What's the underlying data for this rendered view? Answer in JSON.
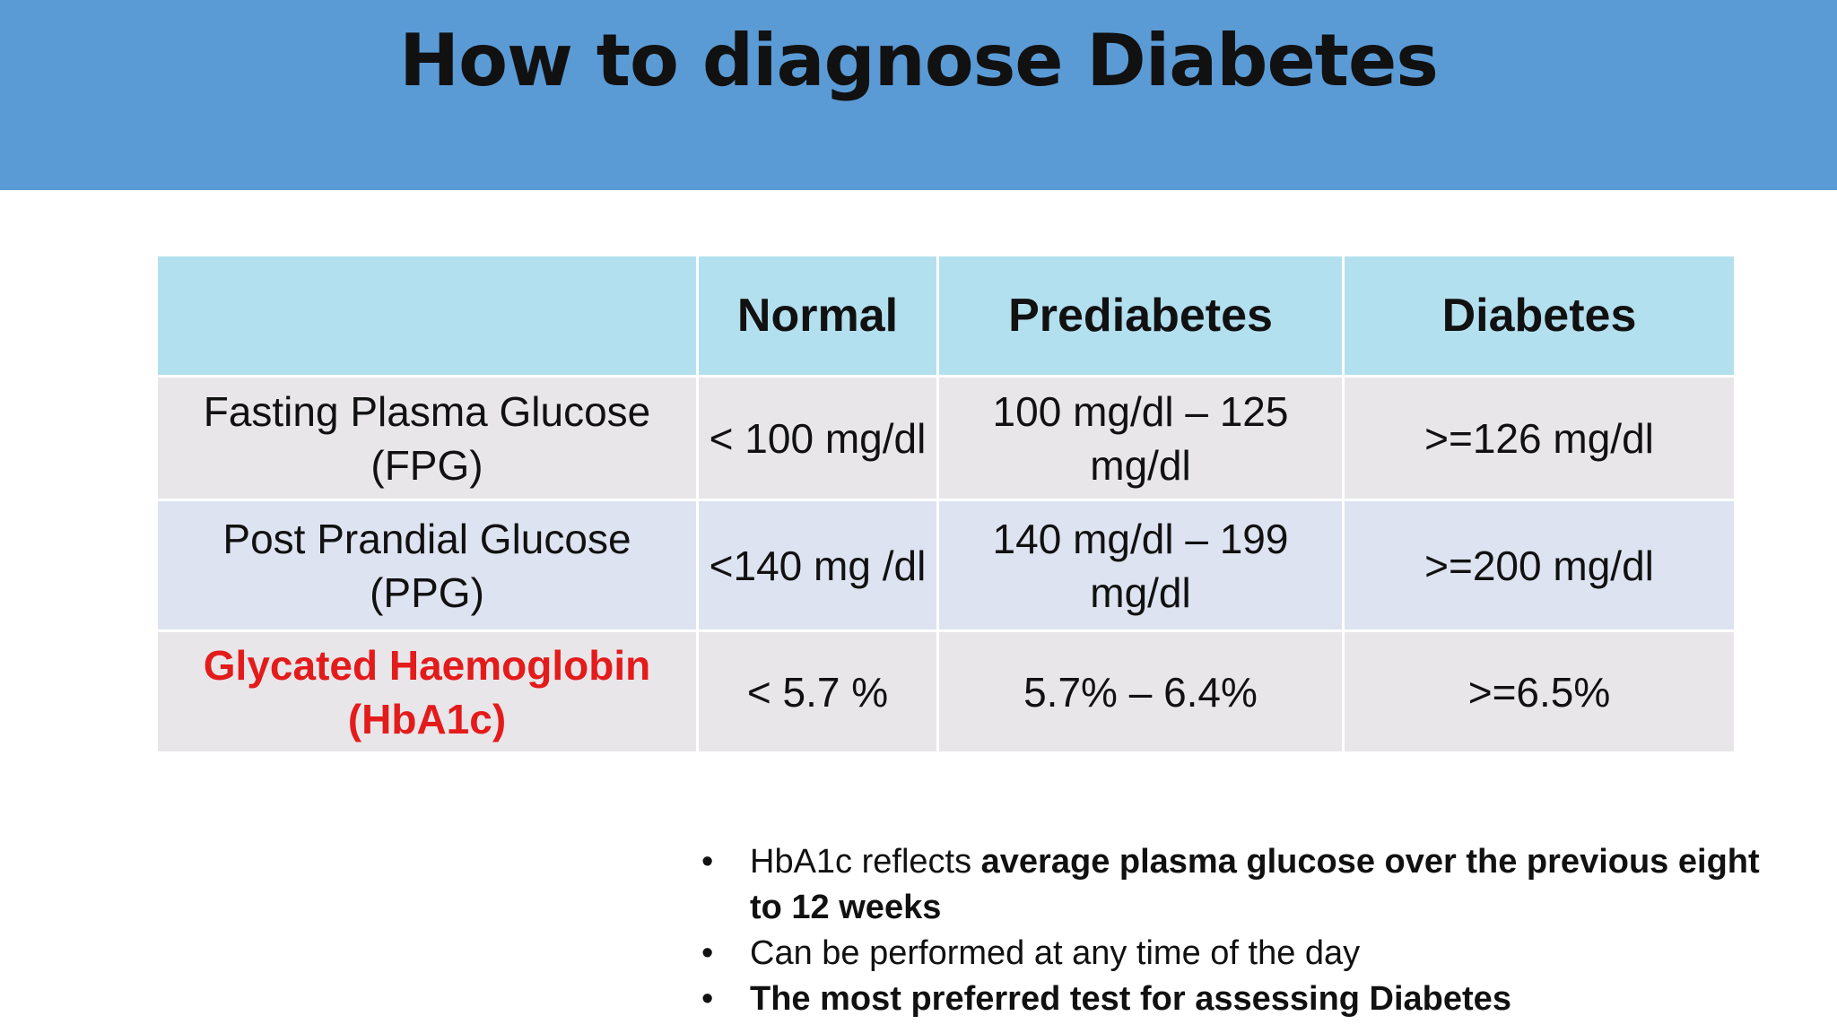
{
  "title": "How to diagnose Diabetes",
  "colors": {
    "title_band": "#5b9bd5",
    "header_row": "#b3e0ef",
    "row_gray": "#e8e6e9",
    "row_blue": "#dde3f0",
    "highlight_red": "#e41b1b"
  },
  "table": {
    "headers": [
      "",
      "Normal",
      "Prediabetes",
      "Diabetes"
    ],
    "rows": [
      {
        "label_line1": "Fasting Plasma Glucose",
        "label_line2": "(FPG)",
        "normal": "< 100 mg/dl",
        "prediabetes": "100 mg/dl – 125 mg/dl",
        "diabetes": ">=126 mg/dl"
      },
      {
        "label_line1": "Post Prandial Glucose (PPG)",
        "label_line2": "",
        "normal": "<140 mg /dl",
        "prediabetes": "140 mg/dl – 199 mg/dl",
        "diabetes": ">=200 mg/dl"
      },
      {
        "label_line1": "Glycated Haemoglobin",
        "label_line2": "(HbA1c)",
        "normal": "< 5.7 %",
        "prediabetes": "5.7% – 6.4%",
        "diabetes": ">=6.5%"
      }
    ]
  },
  "notes": [
    {
      "bullet": "•",
      "plain": "HbA1c reflects ",
      "bold": "average plasma glucose over the previous eight to 12 weeks"
    },
    {
      "bullet": "•",
      "plain": "Can be performed at any time of the day",
      "bold": ""
    },
    {
      "bullet": "•",
      "plain": "",
      "bold": "The most preferred test for assessing Diabetes"
    }
  ]
}
